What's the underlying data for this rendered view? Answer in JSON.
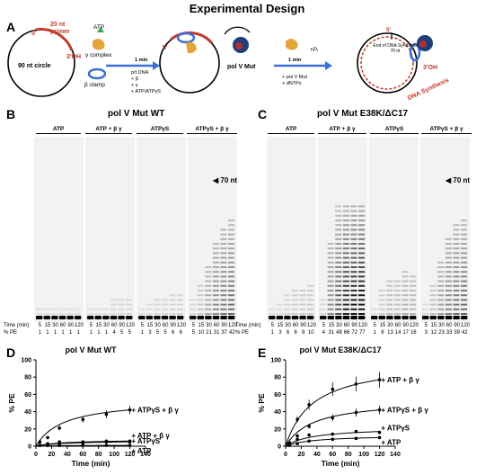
{
  "title": "Experimental Design",
  "panels": {
    "a": "A",
    "b": "B",
    "c": "C",
    "d": "D",
    "e": "E"
  },
  "scheme": {
    "primer": "20 nt\nprimer",
    "five_prime": "5'",
    "three_oh": "3'OH",
    "circle": "90 nt circle",
    "atp": "ATP",
    "gamma_complex": "γ complex",
    "beta_clamp": "β clamp",
    "step1_time": "1 min",
    "step1_list": [
      "p/t DNA",
      "+ β",
      "+ γ",
      "+ ATP/ATPγS"
    ],
    "pol_label": "pol V Mut",
    "step2_time": "1 min",
    "step2_list": [
      "+ pol V Mut",
      "+ dNTPs"
    ],
    "pi": "+Pᵢ",
    "end_synth": "End of DNA Synthesis\n70 nt",
    "dna_synth": "DNA Synthesis",
    "five_prime2": "5'",
    "three_oh2": "3'OH"
  },
  "gel_b": {
    "title": "pol V Mut WT",
    "groups": [
      "ATP",
      "ATP + β γ",
      "ATPγS",
      "ATPγS + β γ"
    ],
    "marker": "70 nt",
    "time_label": "Time (min)",
    "pe_label": "% PE",
    "times": [
      "5",
      "15",
      "30",
      "60",
      "90",
      "120"
    ],
    "pe": [
      [
        "1",
        "1",
        "1",
        "1",
        "1",
        "1"
      ],
      [
        "1",
        "1",
        "1",
        "4",
        "5",
        "5"
      ],
      [
        "1",
        "3",
        "5",
        "5",
        "6",
        "6"
      ],
      [
        "5",
        "10",
        "21",
        "31",
        "37",
        "42"
      ]
    ]
  },
  "gel_c": {
    "title": "pol V Mut E38K/ΔC17",
    "groups": [
      "ATP",
      "ATP + β γ",
      "ATPγS",
      "ATPγS + β γ"
    ],
    "marker": "70 nt",
    "time_label": "Time (min)",
    "pe_label": "% PE",
    "times": [
      "5",
      "15",
      "30",
      "60",
      "90",
      "120"
    ],
    "pe": [
      [
        "1",
        "3",
        "6",
        "8",
        "9",
        "10"
      ],
      [
        "4",
        "31",
        "48",
        "66",
        "72",
        "77"
      ],
      [
        "1",
        "8",
        "13",
        "14",
        "17",
        "16"
      ],
      [
        "3",
        "12",
        "23",
        "33",
        "39",
        "42"
      ]
    ]
  },
  "chart_data": [
    {
      "type": "scatter",
      "title": "pol V Mut WT",
      "xlabel": "Time (min)",
      "ylabel": "% PE",
      "xlim": [
        0,
        140
      ],
      "ylim": [
        0,
        100
      ],
      "xticks": [
        "0",
        "20",
        "40",
        "60",
        "80",
        "100",
        "120",
        "140"
      ],
      "yticks": [
        "0",
        "20",
        "40",
        "60",
        "80",
        "100"
      ],
      "x": [
        5,
        15,
        30,
        60,
        90,
        120
      ],
      "series": [
        {
          "name": "+ ATPγS + β γ",
          "values": [
            5,
            10,
            21,
            31,
            37,
            42
          ]
        },
        {
          "name": "+ ATP + β γ",
          "values": [
            1,
            1,
            1,
            4,
            5,
            5
          ]
        },
        {
          "name": "+ ATPγS",
          "values": [
            1,
            3,
            5,
            5,
            6,
            6
          ]
        },
        {
          "name": "+ ATP",
          "values": [
            1,
            1,
            1,
            1,
            1,
            1
          ]
        }
      ]
    },
    {
      "type": "scatter",
      "title": "pol V Mut E38K/ΔC17",
      "xlabel": "Time (min)",
      "ylabel": "% PE",
      "xlim": [
        0,
        140
      ],
      "ylim": [
        0,
        100
      ],
      "xticks": [
        "0",
        "20",
        "40",
        "60",
        "80",
        "100",
        "120",
        "140"
      ],
      "yticks": [
        "0",
        "20",
        "40",
        "60",
        "80",
        "100"
      ],
      "x": [
        5,
        15,
        30,
        60,
        90,
        120
      ],
      "series": [
        {
          "name": "+ ATP + β γ",
          "values": [
            4,
            31,
            48,
            66,
            72,
            77
          ]
        },
        {
          "name": "+ ATPγS + β γ",
          "values": [
            3,
            12,
            23,
            33,
            39,
            42
          ]
        },
        {
          "name": "+ ATPγS",
          "values": [
            1,
            8,
            13,
            14,
            17,
            16
          ]
        },
        {
          "name": "+ ATP",
          "values": [
            1,
            3,
            6,
            8,
            9,
            10
          ]
        }
      ]
    }
  ]
}
